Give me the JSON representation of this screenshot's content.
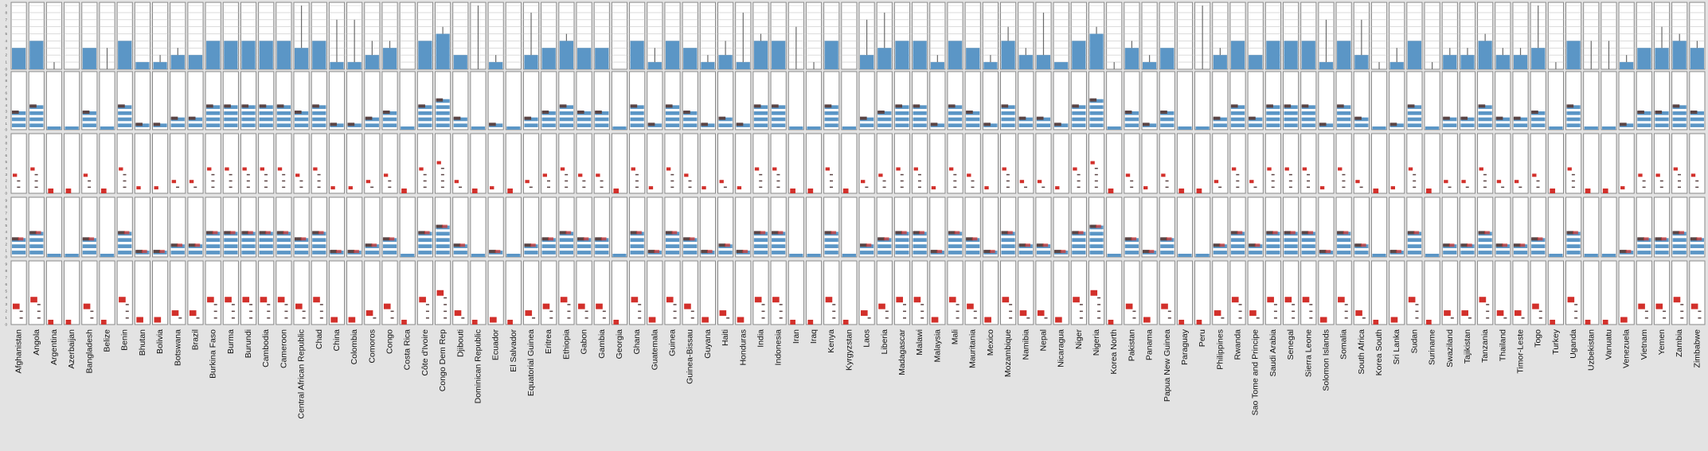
{
  "chart_data": {
    "type": "bar",
    "description_rows": 5,
    "y_ticks": [
      "0",
      "1",
      "2",
      "3",
      "4",
      "5",
      "6",
      "7",
      "8",
      "9"
    ],
    "ylim": [
      0,
      9
    ],
    "colors": {
      "background": "#e3e3e3",
      "panel": "#ffffff",
      "panel_border": "#8a8a8a",
      "blue": "#5b96c6",
      "red": "#d2302b",
      "dark": "#5a4444",
      "grid": "#c8c8c8",
      "whisker": "#6a6a6a"
    },
    "countries": [
      "Afghanistan",
      "Angola",
      "Argentina",
      "Azerbaijan",
      "Bangladesh",
      "Belize",
      "Benin",
      "Bhutan",
      "Bolivia",
      "Botswana",
      "Brazil",
      "Burkina Faso",
      "Burma",
      "Burundi",
      "Cambodia",
      "Cameroon",
      "Central African Republic",
      "Chad",
      "China",
      "Colombia",
      "Comoros",
      "Congo",
      "Costa Rica",
      "Côte d'Ivoire",
      "Congo Dem Rep",
      "Djibouti",
      "Dominican Republic",
      "Ecuador",
      "El Salvador",
      "Equatorial Guinea",
      "Eritrea",
      "Ethiopia",
      "Gabon",
      "Gambia",
      "Georgia",
      "Ghana",
      "Guatemala",
      "Guinea",
      "Guinea-Bissau",
      "Guyana",
      "Haiti",
      "Honduras",
      "India",
      "Indonesia",
      "Iran",
      "Iraq",
      "Kenya",
      "Kyrgyzstan",
      "Laos",
      "Liberia",
      "Madagascar",
      "Malawi",
      "Malaysia",
      "Mali",
      "Mauritania",
      "Mexico",
      "Mozambique",
      "Namibia",
      "Nepal",
      "Nicaragua",
      "Niger",
      "Nigeria",
      "Korea North",
      "Pakistan",
      "Panama",
      "Papua New Guinea",
      "Paraguay",
      "Peru",
      "Philippines",
      "Rwanda",
      "Sao Tome and Principe",
      "Saudi Arabia",
      "Senegal",
      "Sierra Leone",
      "Solomon Islands",
      "Somalia",
      "South Africa",
      "Korea South",
      "Sri Lanka",
      "Sudan",
      "Suriname",
      "Swaziland",
      "Tajikistan",
      "Tanzania",
      "Thailand",
      "Timor-Leste",
      "Togo",
      "Turkey",
      "Uganda",
      "Uzbekistan",
      "Vanuatu",
      "Venezuela",
      "Vietnam",
      "Yemen",
      "Zambia",
      "Zimbabwe"
    ],
    "values": [
      3,
      4,
      0,
      0,
      3,
      0,
      4,
      1,
      1,
      2,
      2,
      4,
      4,
      4,
      4,
      4,
      3,
      4,
      1,
      1,
      2,
      3,
      0,
      4,
      5,
      2,
      0,
      1,
      0,
      2,
      3,
      4,
      3,
      3,
      0,
      4,
      1,
      4,
      3,
      1,
      2,
      1,
      4,
      4,
      0,
      0,
      4,
      0,
      2,
      3,
      4,
      4,
      1,
      4,
      3,
      1,
      4,
      2,
      2,
      1,
      4,
      5,
      0,
      3,
      1,
      3,
      0,
      0,
      2,
      4,
      2,
      4,
      4,
      4,
      1,
      4,
      2,
      0,
      1,
      4,
      0,
      2,
      2,
      4,
      2,
      2,
      3,
      0,
      4,
      0,
      0,
      1,
      3,
      3,
      4,
      3
    ],
    "whisker_max": [
      3,
      4,
      1,
      0,
      3,
      3,
      4,
      1,
      2,
      3,
      2,
      4,
      4,
      4,
      4,
      4,
      9,
      4,
      7,
      7,
      4,
      4,
      0,
      4,
      6,
      2,
      9,
      2,
      0,
      8,
      3,
      5,
      3,
      3,
      0,
      4,
      3,
      4,
      3,
      2,
      4,
      8,
      5,
      4,
      6,
      1,
      4,
      0,
      7,
      8,
      4,
      4,
      2,
      4,
      3,
      2,
      6,
      3,
      8,
      1,
      4,
      6,
      1,
      4,
      2,
      3,
      0,
      9,
      3,
      4,
      2,
      4,
      4,
      4,
      7,
      4,
      7,
      1,
      3,
      4,
      1,
      3,
      3,
      5,
      3,
      3,
      9,
      1,
      4,
      4,
      4,
      2,
      3,
      6,
      5,
      4
    ]
  }
}
